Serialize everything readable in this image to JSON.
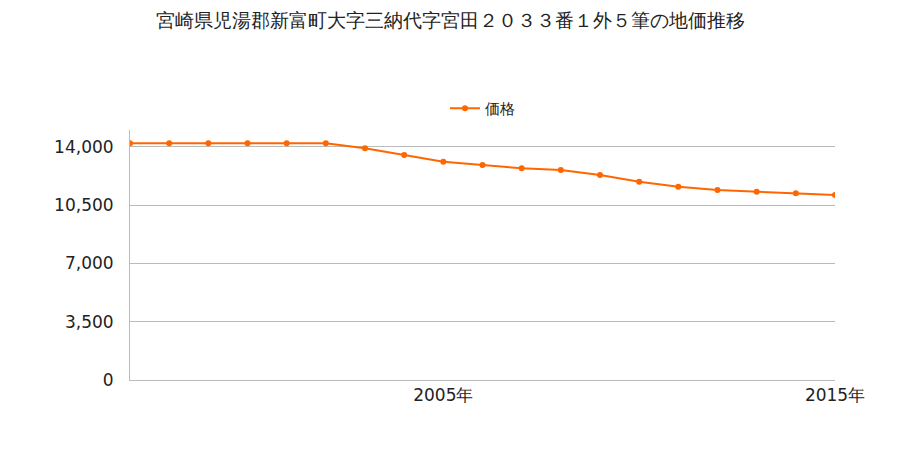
{
  "chart_data": {
    "type": "line",
    "title": "宮崎県児湯郡新富町大字三納代字宮田２０３３番１外５筆の地価推移",
    "x": [
      1997,
      1998,
      1999,
      2000,
      2001,
      2002,
      2003,
      2004,
      2005,
      2006,
      2007,
      2008,
      2009,
      2010,
      2011,
      2012,
      2013,
      2014,
      2015
    ],
    "series": [
      {
        "name": "価格",
        "color": "#ff6600",
        "marker": "circle",
        "line_style": "solid",
        "values": [
          14200,
          14200,
          14200,
          14200,
          14200,
          14200,
          13900,
          13500,
          13100,
          12900,
          12700,
          12600,
          12300,
          11900,
          11600,
          11400,
          11300,
          11200,
          11100
        ]
      }
    ],
    "xlim": [
      1997,
      2015
    ],
    "xticks": [
      {
        "value": 2005,
        "label": "2005年"
      },
      {
        "value": 2015,
        "label": "2015年"
      }
    ],
    "ylim": [
      0,
      15000
    ],
    "yticks": [
      0,
      {
        "value": 3500,
        "label": "3,500"
      },
      {
        "value": 7000,
        "label": "7,000"
      },
      {
        "value": 10500,
        "label": "10,500"
      },
      {
        "value": 14000,
        "label": "14,000"
      }
    ],
    "grid": true,
    "legend": "top"
  }
}
